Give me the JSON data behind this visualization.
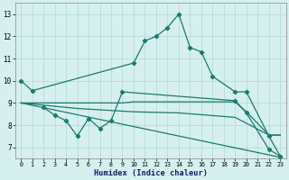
{
  "line1_x": [
    0,
    1,
    10,
    11,
    12,
    13,
    14,
    15,
    16,
    17,
    19,
    20,
    22,
    23
  ],
  "line1_y": [
    10.0,
    9.55,
    10.8,
    11.8,
    12.0,
    12.4,
    13.0,
    11.5,
    11.3,
    10.2,
    9.5,
    9.5,
    7.5,
    6.6
  ],
  "line2_x": [
    2,
    3,
    4,
    5,
    6,
    7,
    8,
    9,
    19,
    20,
    22,
    23
  ],
  "line2_y": [
    8.8,
    8.45,
    8.2,
    7.5,
    8.3,
    7.85,
    8.2,
    9.5,
    9.1,
    8.55,
    6.9,
    6.6
  ],
  "line3_x": [
    0,
    9,
    10,
    14,
    19,
    20,
    22,
    23
  ],
  "line3_y": [
    9.0,
    9.0,
    9.05,
    9.05,
    9.05,
    8.6,
    7.55,
    7.55
  ],
  "line4_x": [
    0,
    5,
    10,
    14,
    19,
    22,
    23
  ],
  "line4_y": [
    9.0,
    8.75,
    8.6,
    8.55,
    8.35,
    7.55,
    7.55
  ],
  "line5_x": [
    0,
    23
  ],
  "line5_y": [
    9.0,
    6.55
  ],
  "color": "#1a7a6e",
  "bg_color": "#d6f0ef",
  "grid_color": "#b8dbd8",
  "xlabel": "Humidex (Indice chaleur)",
  "ylim": [
    6.5,
    13.5
  ],
  "xlim": [
    -0.5,
    23.5
  ],
  "yticks": [
    7,
    8,
    9,
    10,
    11,
    12,
    13
  ],
  "xticks": [
    0,
    1,
    2,
    3,
    4,
    5,
    6,
    7,
    8,
    9,
    10,
    11,
    12,
    13,
    14,
    15,
    16,
    17,
    18,
    19,
    20,
    21,
    22,
    23
  ]
}
